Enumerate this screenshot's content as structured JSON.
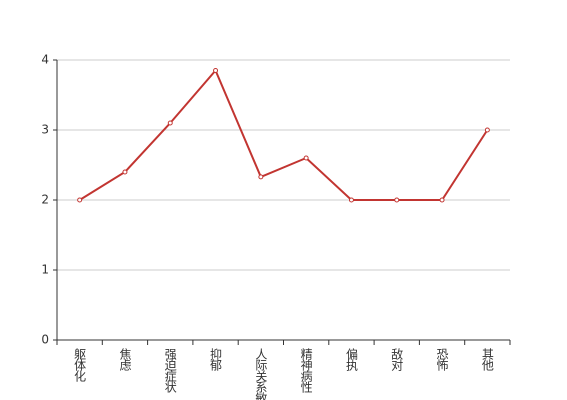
{
  "chart_data": {
    "type": "line",
    "categories": [
      "躯体化",
      "焦虑",
      "强迫症状",
      "抑郁",
      "人际关系敏感",
      "精神病性",
      "偏执",
      "敌对",
      "恐怖",
      "其他"
    ],
    "series": [
      {
        "color": "#c23531",
        "values": [
          2,
          2.4,
          3.1,
          3.85,
          2.33,
          2.6,
          2,
          2,
          2,
          3
        ]
      }
    ],
    "ylim": [
      0,
      4
    ],
    "yticks": [
      0,
      1,
      2,
      3,
      4
    ],
    "grid": true
  }
}
